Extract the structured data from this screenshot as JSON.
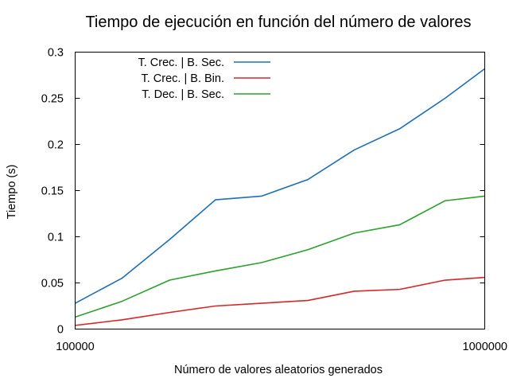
{
  "chart_data": {
    "type": "line",
    "title": "Tiempo de ejecución en función del número de valores",
    "xlabel": "Número de valores aleatorios generados",
    "ylabel": "Tiempo (s)",
    "x_scale": "log",
    "xlim": [
      100000,
      1000000
    ],
    "ylim": [
      0,
      0.3
    ],
    "x_ticks": [
      {
        "value": 100000,
        "label": "100000"
      },
      {
        "value": 1000000,
        "label": "1000000"
      }
    ],
    "y_ticks": [
      {
        "value": 0,
        "label": "0"
      },
      {
        "value": 0.05,
        "label": "0.05"
      },
      {
        "value": 0.1,
        "label": "0.1"
      },
      {
        "value": 0.15,
        "label": "0.15"
      },
      {
        "value": 0.2,
        "label": "0.2"
      },
      {
        "value": 0.25,
        "label": "0.25"
      },
      {
        "value": 0.3,
        "label": "0.3"
      }
    ],
    "grid": false,
    "legend_position": "top-left",
    "x": [
      100000,
      130000,
      170000,
      220000,
      285000,
      370000,
      480000,
      620000,
      800000,
      1000000
    ],
    "series": [
      {
        "name": "T. Crec. | B. Sec.",
        "color": "#1f6fb4",
        "values": [
          0.028,
          0.055,
          0.097,
          0.14,
          0.144,
          0.162,
          0.194,
          0.217,
          0.25,
          0.282
        ]
      },
      {
        "name": "T. Crec. | B. Bin.",
        "color": "#d62728",
        "values": [
          0.004,
          0.01,
          0.018,
          0.025,
          0.028,
          0.031,
          0.041,
          0.043,
          0.053,
          0.056
        ]
      },
      {
        "name": "T. Dec. | B. Sec.",
        "color": "#2ca02c",
        "values": [
          0.013,
          0.03,
          0.053,
          0.063,
          0.072,
          0.086,
          0.104,
          0.113,
          0.139,
          0.144
        ]
      }
    ]
  }
}
